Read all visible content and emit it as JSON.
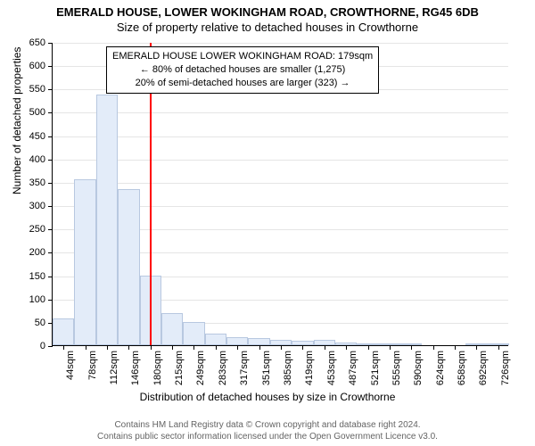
{
  "title": "EMERALD HOUSE, LOWER WOKINGHAM ROAD, CROWTHORNE, RG45 6DB",
  "subtitle": "Size of property relative to detached houses in Crowthorne",
  "y_axis_title": "Number of detached properties",
  "x_axis_title": "Distribution of detached houses by size in Crowthorne",
  "chart": {
    "type": "histogram",
    "ylim": [
      0,
      650
    ],
    "ytick_step": 50,
    "background_color": "#ffffff",
    "grid_color": "#e5e5e5",
    "bar_fill": "#e3ecf9",
    "bar_border": "#b8c8e0",
    "marker_color": "#ff0000",
    "marker_x_value": 179,
    "label_fontsize": 11,
    "title_fontsize": 13,
    "x_labels": [
      "44sqm",
      "78sqm",
      "112sqm",
      "146sqm",
      "180sqm",
      "215sqm",
      "249sqm",
      "283sqm",
      "317sqm",
      "351sqm",
      "385sqm",
      "419sqm",
      "453sqm",
      "487sqm",
      "521sqm",
      "555sqm",
      "590sqm",
      "624sqm",
      "658sqm",
      "692sqm",
      "726sqm"
    ],
    "values": [
      58,
      355,
      538,
      335,
      150,
      68,
      50,
      25,
      18,
      15,
      12,
      10,
      12,
      5,
      3,
      2,
      2,
      0,
      0,
      1,
      1
    ],
    "y_ticks": [
      0,
      50,
      100,
      150,
      200,
      250,
      300,
      350,
      400,
      450,
      500,
      550,
      600,
      650
    ]
  },
  "info_box": {
    "line1": "EMERALD HOUSE LOWER WOKINGHAM ROAD: 179sqm",
    "line2": "← 80% of detached houses are smaller (1,275)",
    "line3": "20% of semi-detached houses are larger (323) →"
  },
  "footer": {
    "line1": "Contains HM Land Registry data © Crown copyright and database right 2024.",
    "line2": "Contains public sector information licensed under the Open Government Licence v3.0."
  }
}
